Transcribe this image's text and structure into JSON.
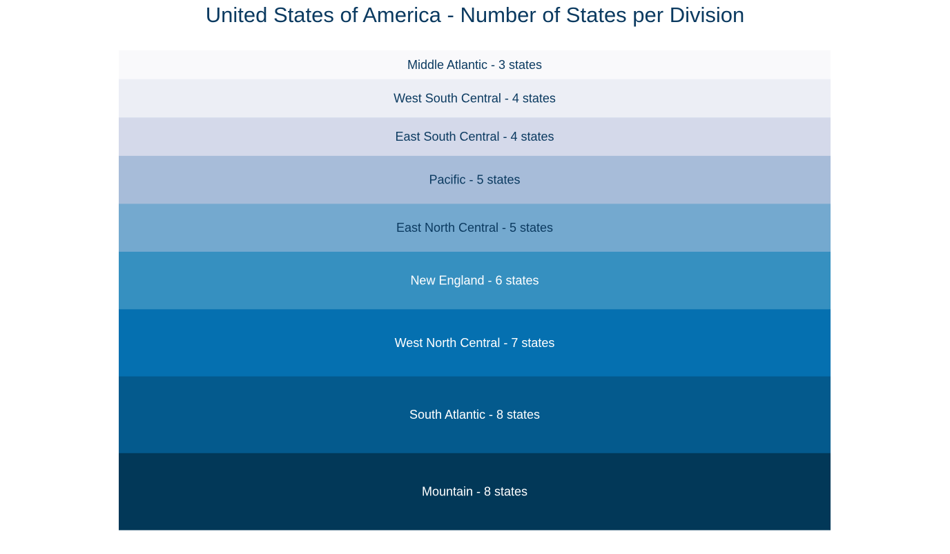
{
  "chart_data": {
    "type": "bar",
    "subtype": "stacked-proportional",
    "title": "United States of America - Number of States per Division",
    "title_color": "#0b3a60",
    "unit_label": "states",
    "segments": [
      {
        "category": "Middle Atlantic",
        "value": 3,
        "color": "#f9f9fb",
        "text_color": "#0b3a60"
      },
      {
        "category": "West South Central",
        "value": 4,
        "color": "#eceef5",
        "text_color": "#0b3a60"
      },
      {
        "category": "East South Central",
        "value": 4,
        "color": "#d4d9ea",
        "text_color": "#0b3a60"
      },
      {
        "category": "Pacific",
        "value": 5,
        "color": "#a7bcd9",
        "text_color": "#0b3a60"
      },
      {
        "category": "East North Central",
        "value": 5,
        "color": "#74a9cf",
        "text_color": "#0b3a60"
      },
      {
        "category": "New England",
        "value": 6,
        "color": "#3690c0",
        "text_color": "#ffffff"
      },
      {
        "category": "West North Central",
        "value": 7,
        "color": "#0570b0",
        "text_color": "#ffffff"
      },
      {
        "category": "South Atlantic",
        "value": 8,
        "color": "#045a8d",
        "text_color": "#ffffff"
      },
      {
        "category": "Mountain",
        "value": 8,
        "color": "#023858",
        "text_color": "#ffffff"
      }
    ]
  }
}
